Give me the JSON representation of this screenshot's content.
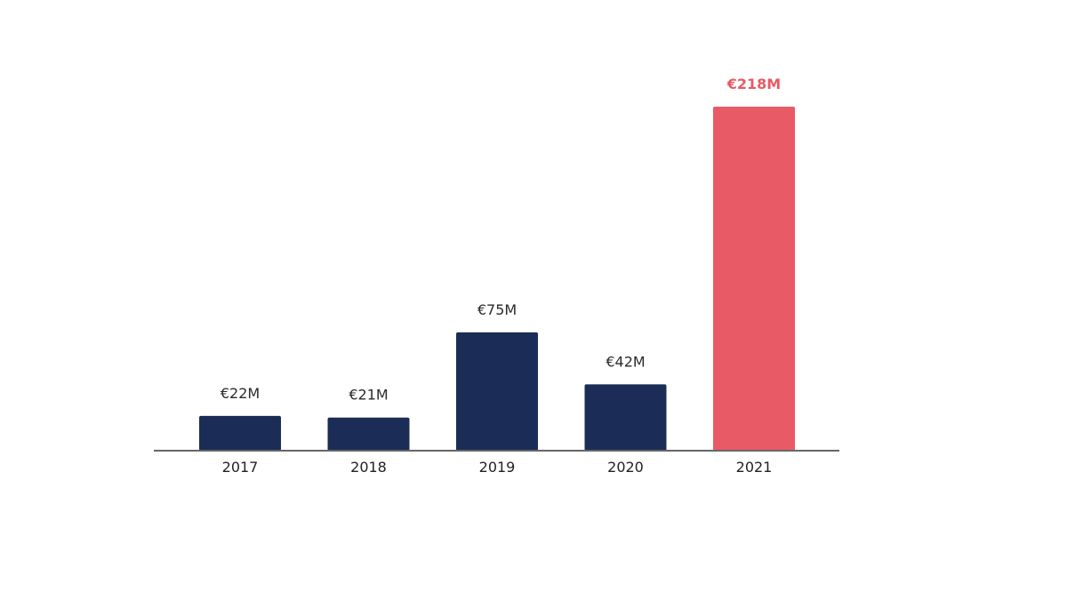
{
  "chart_data": {
    "type": "bar",
    "title": "",
    "xlabel": "",
    "ylabel": "",
    "categories": [
      "2017",
      "2018",
      "2019",
      "2020",
      "2021"
    ],
    "values": [
      22,
      21,
      75,
      42,
      218
    ],
    "value_labels": [
      "€22M",
      "€21M",
      "€75M",
      "€42M",
      "€218M"
    ],
    "unit": "€M",
    "ylim": [
      0,
      218
    ],
    "grid": false,
    "legend": "none",
    "colors": {
      "default": "#1b2d56",
      "highlight": "#e85a66",
      "label_default": "#2b2b2b",
      "label_highlight": "#e85a66",
      "axis": "#666666"
    },
    "highlight_index": 4
  }
}
